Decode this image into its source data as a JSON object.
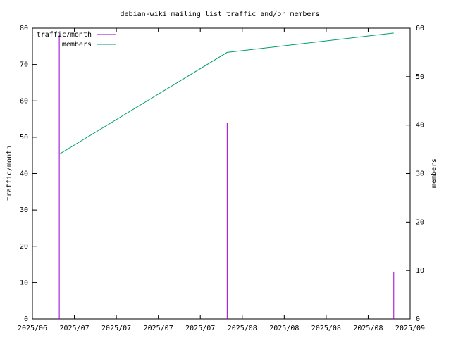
{
  "chart_data": {
    "type": "impulse_line",
    "title": "debian-wiki mailing list traffic and/or members",
    "y_label": "traffic/month",
    "y2_label": "members",
    "xlim": [
      0,
      9
    ],
    "xticks": [
      {
        "value": 0,
        "label": "2025/06"
      },
      {
        "value": 1,
        "label": "2025/07"
      },
      {
        "value": 2,
        "label": "2025/07"
      },
      {
        "value": 3,
        "label": "2025/07"
      },
      {
        "value": 4,
        "label": "2025/07"
      },
      {
        "value": 5,
        "label": "2025/08"
      },
      {
        "value": 6,
        "label": "2025/08"
      },
      {
        "value": 7,
        "label": "2025/08"
      },
      {
        "value": 8,
        "label": "2025/08"
      },
      {
        "value": 9,
        "label": "2025/09"
      }
    ],
    "ylim": [
      0,
      80
    ],
    "yticks": [
      0,
      10,
      20,
      30,
      40,
      50,
      60,
      70,
      80
    ],
    "y2lim": [
      0,
      60
    ],
    "y2ticks": [
      0,
      10,
      20,
      30,
      40,
      50,
      60
    ],
    "legend": "top-left",
    "series": [
      {
        "name": "traffic/month",
        "color": "#9400d3",
        "style": "impulses",
        "x": [
          0.64,
          4.64,
          8.61
        ],
        "values": [
          78,
          54,
          13
        ]
      },
      {
        "name": "members",
        "color": "#009e73",
        "style": "line",
        "axis": "y2",
        "x": [
          0.64,
          4.64,
          8.61
        ],
        "values": [
          34,
          55,
          59
        ]
      }
    ]
  }
}
